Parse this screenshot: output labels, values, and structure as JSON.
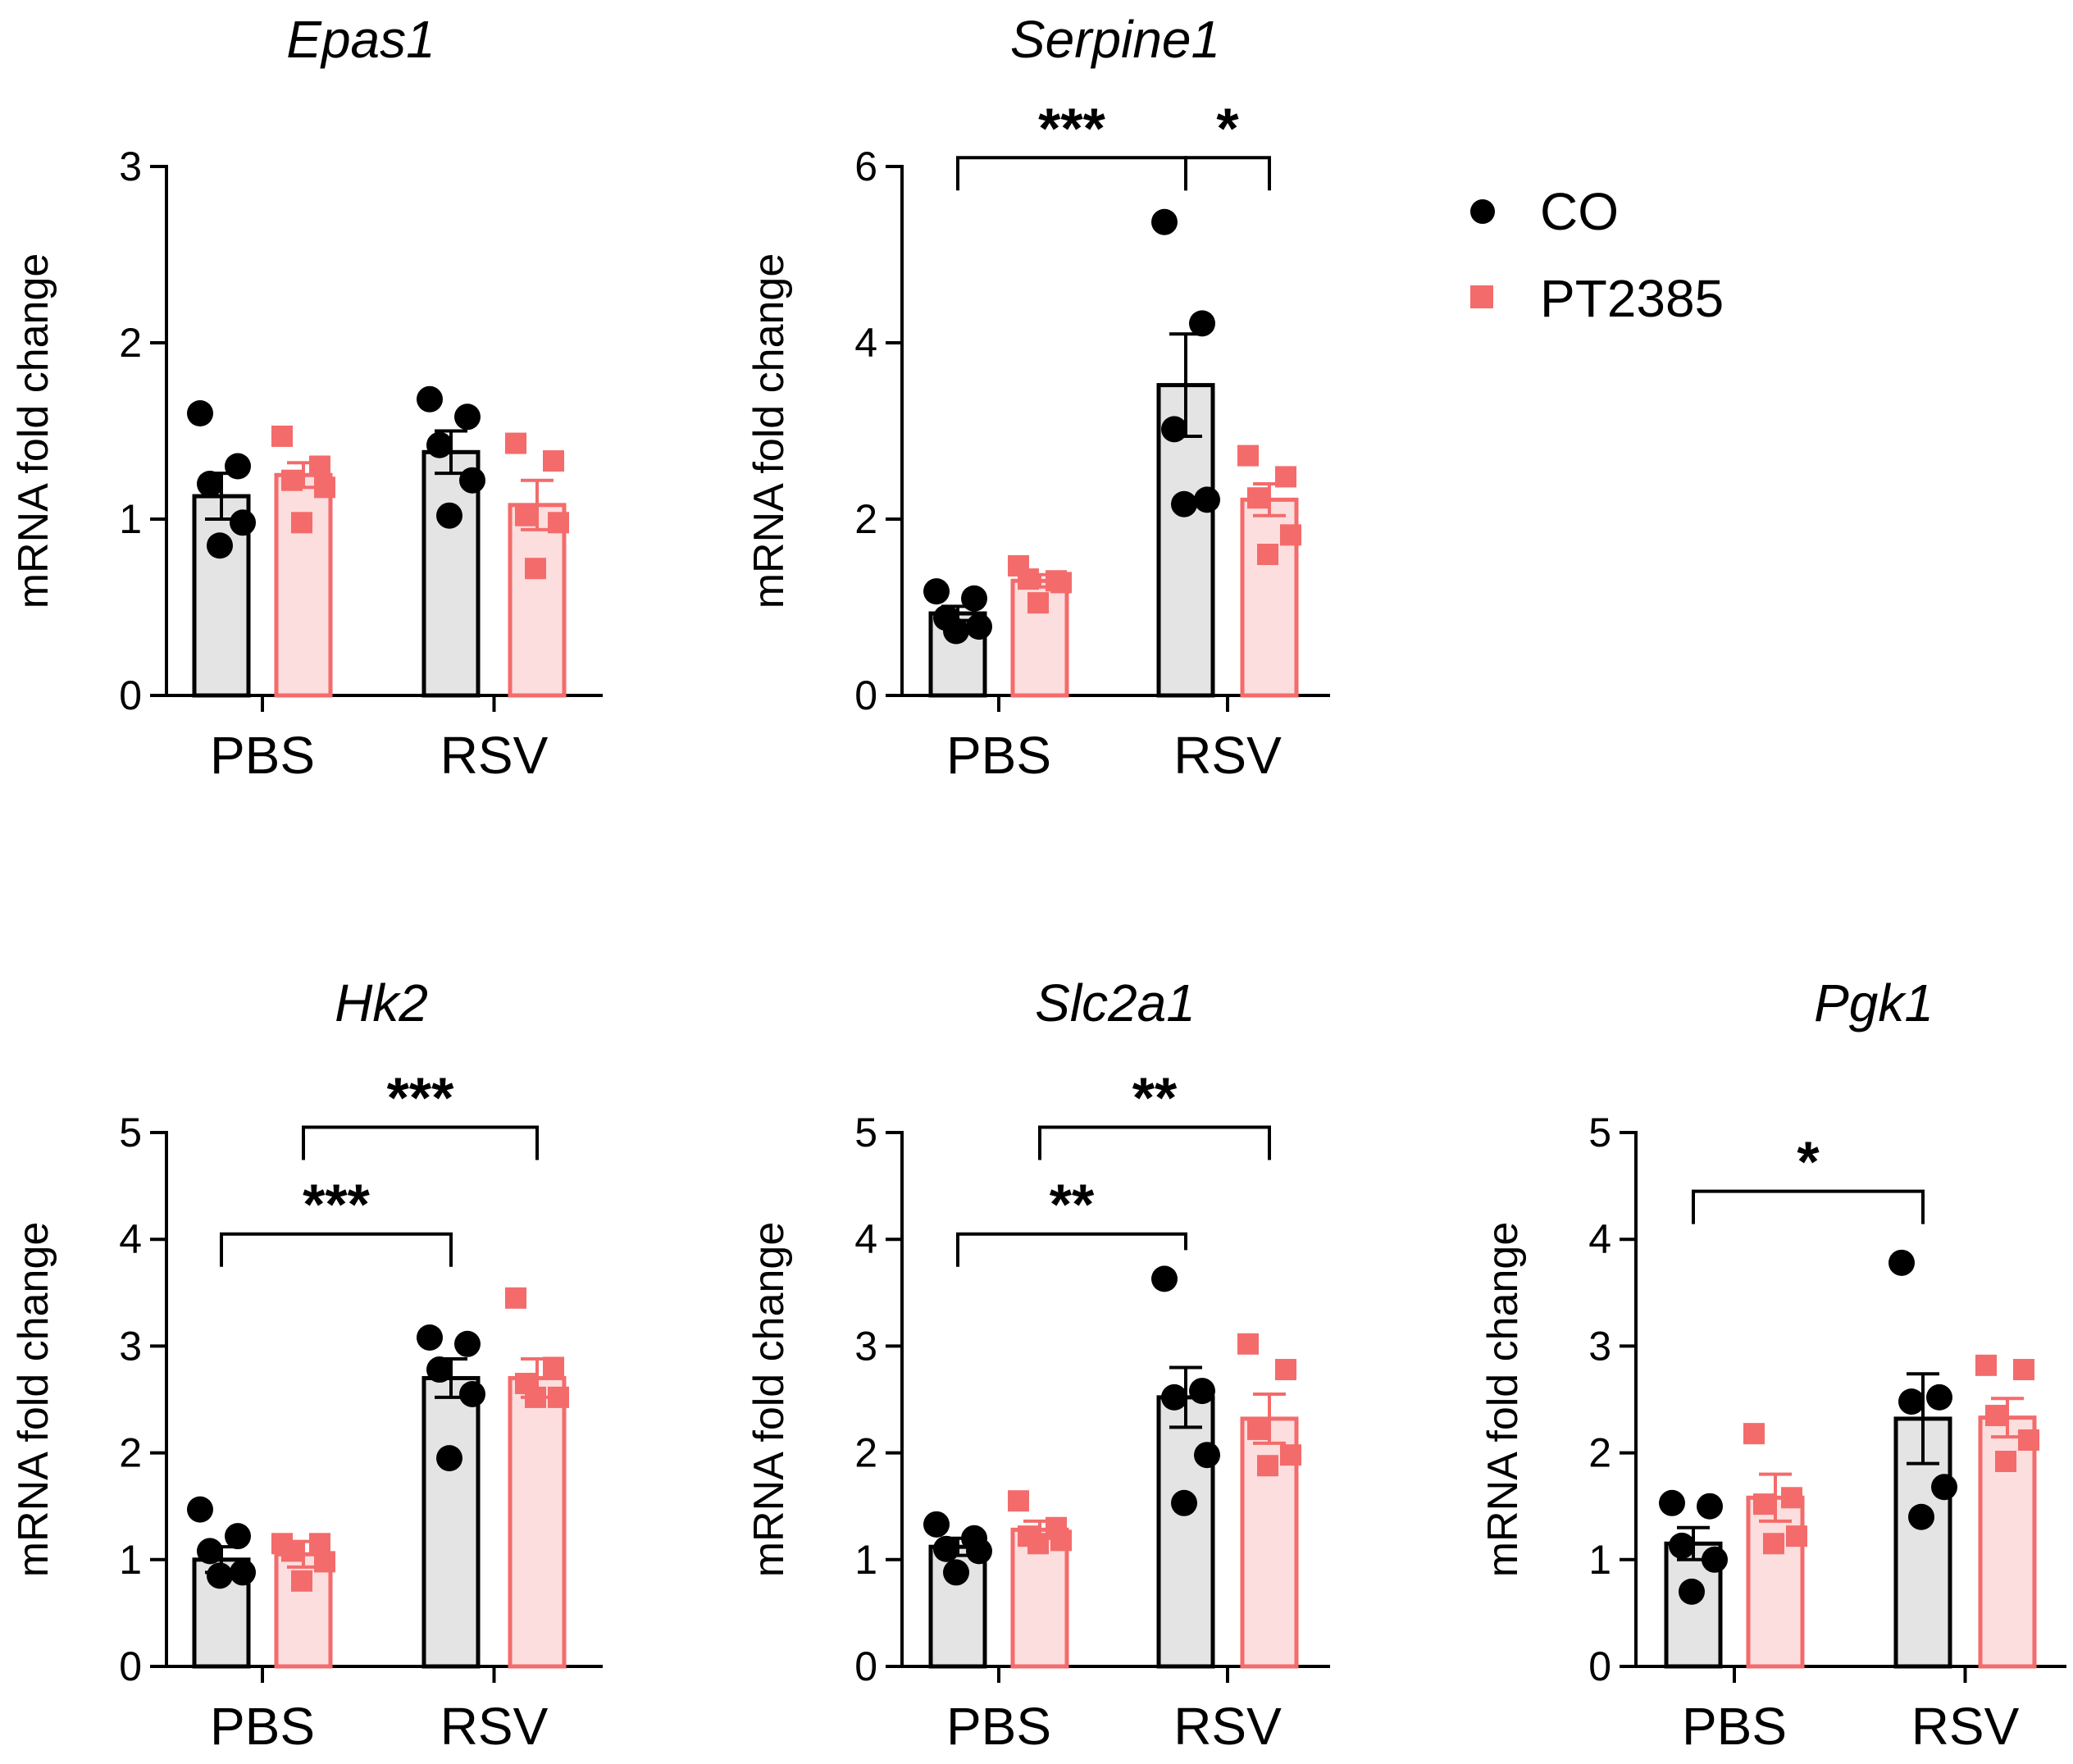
{
  "legend": {
    "items": [
      {
        "label": "CO",
        "marker": "circle",
        "color": "#000000"
      },
      {
        "label": "PT2385",
        "marker": "square",
        "color": "#f46b6b"
      }
    ]
  },
  "colors": {
    "co_fill": "#e4e4e4",
    "co_edge": "#000000",
    "pt_fill": "#fcdede",
    "pt_edge": "#f46b6b",
    "pt_point": "#f46b6b",
    "co_point": "#000000"
  },
  "chart_data": [
    {
      "type": "bar",
      "title": "Epas1",
      "ylabel": "mRNA fold change",
      "xlabel": "",
      "categories": [
        "PBS",
        "RSV"
      ],
      "ylim": [
        0,
        3
      ],
      "yticks": [
        0,
        1,
        2,
        3
      ],
      "series": [
        {
          "name": "CO",
          "means": [
            1.13,
            1.38
          ],
          "sem": [
            0.13,
            0.12
          ],
          "points": [
            [
              1.6,
              1.3,
              1.2,
              0.98,
              0.85
            ],
            [
              1.68,
              1.58,
              1.42,
              1.22,
              1.02
            ]
          ]
        },
        {
          "name": "PT2385",
          "means": [
            1.25,
            1.08
          ],
          "sem": [
            0.07,
            0.14
          ],
          "points": [
            [
              1.47,
              1.3,
              1.22,
              1.18,
              0.98
            ],
            [
              1.43,
              1.33,
              1.02,
              0.98,
              0.72
            ]
          ]
        }
      ],
      "significance": []
    },
    {
      "type": "bar",
      "title": "Serpine1",
      "ylabel": "mRNA fold change",
      "xlabel": "",
      "categories": [
        "PBS",
        "RSV"
      ],
      "ylim": [
        0,
        6
      ],
      "yticks": [
        0,
        2,
        4,
        6
      ],
      "series": [
        {
          "name": "CO",
          "means": [
            0.93,
            3.52
          ],
          "sem": [
            0.08,
            0.58
          ],
          "points": [
            [
              1.18,
              1.1,
              0.88,
              0.78,
              0.73
            ],
            [
              5.37,
              4.22,
              3.02,
              2.22,
              2.17
            ]
          ]
        },
        {
          "name": "PT2385",
          "means": [
            1.3,
            2.22
          ],
          "sem": [
            0.07,
            0.18
          ],
          "points": [
            [
              1.47,
              1.3,
              1.32,
              1.28,
              1.05
            ],
            [
              2.72,
              2.48,
              2.24,
              1.82,
              1.6
            ]
          ]
        }
      ],
      "significance": [
        {
          "label": "***",
          "from": "PBS-CO",
          "to": "RSV-CO",
          "y": 6.1
        },
        {
          "label": "*",
          "from": "RSV-CO",
          "to": "RSV-PT2385",
          "y": 6.1
        }
      ]
    },
    {
      "type": "bar",
      "title": "Hk2",
      "ylabel": "mRNA fold change",
      "xlabel": "",
      "categories": [
        "PBS",
        "RSV"
      ],
      "ylim": [
        0,
        5
      ],
      "yticks": [
        0,
        1,
        2,
        3,
        4,
        5
      ],
      "series": [
        {
          "name": "CO",
          "means": [
            1.0,
            2.7
          ],
          "sem": [
            0.12,
            0.18
          ],
          "points": [
            [
              1.47,
              1.22,
              1.08,
              0.88,
              0.85
            ],
            [
              3.08,
              3.02,
              2.78,
              2.55,
              1.95
            ]
          ]
        },
        {
          "name": "PT2385",
          "means": [
            1.05,
            2.7
          ],
          "sem": [
            0.12,
            0.18
          ],
          "points": [
            [
              1.15,
              1.15,
              1.08,
              0.98,
              0.8
            ],
            [
              3.45,
              2.8,
              2.65,
              2.52,
              2.52
            ]
          ]
        }
      ],
      "significance": [
        {
          "label": "***",
          "from": "PBS-CO",
          "to": "RSV-CO",
          "y": 4.05
        },
        {
          "label": "***",
          "from": "PBS-PT2385",
          "to": "RSV-PT2385",
          "y": 5.05
        }
      ]
    },
    {
      "type": "bar",
      "title": "Slc2a1",
      "ylabel": "mRNA fold change",
      "xlabel": "",
      "categories": [
        "PBS",
        "RSV"
      ],
      "ylim": [
        0,
        5
      ],
      "yticks": [
        0,
        1,
        2,
        3,
        4,
        5
      ],
      "series": [
        {
          "name": "CO",
          "means": [
            1.12,
            2.52
          ],
          "sem": [
            0.08,
            0.28
          ],
          "points": [
            [
              1.33,
              1.2,
              1.1,
              1.08,
              0.88
            ],
            [
              3.63,
              2.58,
              2.52,
              1.98,
              1.53
            ]
          ]
        },
        {
          "name": "PT2385",
          "means": [
            1.28,
            2.32
          ],
          "sem": [
            0.08,
            0.23
          ],
          "points": [
            [
              1.55,
              1.3,
              1.22,
              1.18,
              1.15
            ],
            [
              3.02,
              2.78,
              2.22,
              1.98,
              1.88
            ]
          ]
        }
      ],
      "significance": [
        {
          "label": "**",
          "from": "PBS-CO",
          "to": "RSV-CO",
          "y": 4.05
        },
        {
          "label": "**",
          "from": "PBS-PT2385",
          "to": "RSV-PT2385",
          "y": 5.05
        }
      ]
    },
    {
      "type": "bar",
      "title": "Pgk1",
      "ylabel": "mRNA fold change",
      "xlabel": "",
      "categories": [
        "PBS",
        "RSV"
      ],
      "ylim": [
        0,
        5
      ],
      "yticks": [
        0,
        1,
        2,
        3,
        4,
        5
      ],
      "series": [
        {
          "name": "CO",
          "means": [
            1.15,
            2.32
          ],
          "sem": [
            0.15,
            0.42
          ],
          "points": [
            [
              1.53,
              1.5,
              1.13,
              1.0,
              0.7
            ],
            [
              3.78,
              2.52,
              2.48,
              1.68,
              1.4
            ]
          ]
        },
        {
          "name": "PT2385",
          "means": [
            1.58,
            2.33
          ],
          "sem": [
            0.22,
            0.18
          ],
          "points": [
            [
              2.18,
              1.58,
              1.52,
              1.22,
              1.15
            ],
            [
              2.82,
              2.78,
              2.35,
              2.12,
              1.92
            ]
          ]
        }
      ],
      "significance": [
        {
          "label": "*",
          "from": "PBS-CO",
          "to": "RSV-CO",
          "y": 4.45
        }
      ]
    }
  ]
}
